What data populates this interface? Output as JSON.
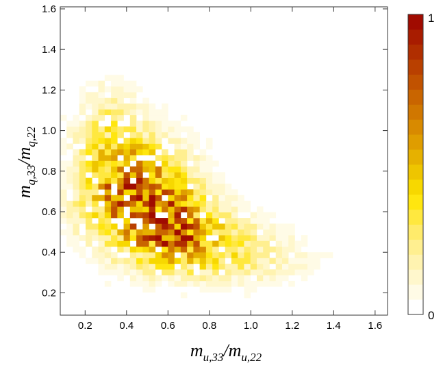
{
  "chart_data": {
    "type": "heatmap",
    "title": "",
    "xlabel": {
      "m": "m",
      "num_sub": "u,33",
      "slash": "/",
      "den_sub": "u,22"
    },
    "ylabel": {
      "m": "m",
      "num_sub": "q,33",
      "slash": "/",
      "den_sub": "q,22"
    },
    "xlim": [
      0.08,
      1.66
    ],
    "ylim": [
      0.09,
      1.61
    ],
    "x_ticks": [
      "0.2",
      "0.4",
      "0.6",
      "0.8",
      "1.0",
      "1.2",
      "1.4",
      "1.6"
    ],
    "y_ticks": [
      "0.2",
      "0.4",
      "0.6",
      "0.8",
      "1.0",
      "1.2",
      "1.4",
      "1.6"
    ],
    "bin_width_x": 0.0306,
    "bin_width_y": 0.0282,
    "colorbar": {
      "min_label": "0",
      "max_label": "1",
      "levels": 20
    },
    "colormap": [
      "#ffffff",
      "#fffbe6",
      "#fff7cc",
      "#fff3b0",
      "#ffef90",
      "#ffeb6b",
      "#ffe83f",
      "#ffe60f",
      "#f7d800",
      "#eec500",
      "#e6b100",
      "#df9d00",
      "#d88a00",
      "#d07700",
      "#c96500",
      "#c15200",
      "#b94000",
      "#b02e00",
      "#a81c00",
      "#a00b00"
    ],
    "blobs": [
      {
        "x": 0.44,
        "y": 0.7,
        "sx": 0.17,
        "sy": 0.17,
        "w": 0.75
      },
      {
        "x": 0.62,
        "y": 0.52,
        "sx": 0.16,
        "sy": 0.12,
        "w": 0.55
      },
      {
        "x": 0.82,
        "y": 0.42,
        "sx": 0.2,
        "sy": 0.1,
        "w": 0.3
      },
      {
        "x": 1.1,
        "y": 0.35,
        "sx": 0.18,
        "sy": 0.08,
        "w": 0.08
      },
      {
        "x": 0.32,
        "y": 1.0,
        "sx": 0.1,
        "sy": 0.15,
        "w": 0.22
      }
    ],
    "hot_cells": [
      {
        "x": 0.535,
        "y": 0.57,
        "v": 1.0
      },
      {
        "x": 0.685,
        "y": 0.42,
        "v": 0.72
      },
      {
        "x": 0.375,
        "y": 0.73,
        "v": 0.62
      },
      {
        "x": 0.375,
        "y": 0.62,
        "v": 0.55
      },
      {
        "x": 0.745,
        "y": 0.4,
        "v": 0.5
      },
      {
        "x": 0.715,
        "y": 0.44,
        "v": 0.5
      },
      {
        "x": 0.445,
        "y": 0.79,
        "v": 0.48
      },
      {
        "x": 0.475,
        "y": 0.62,
        "v": 0.45
      },
      {
        "x": 0.595,
        "y": 0.48,
        "v": 0.45
      },
      {
        "x": 0.655,
        "y": 0.52,
        "v": 0.42
      },
      {
        "x": 0.415,
        "y": 0.56,
        "v": 0.42
      },
      {
        "x": 0.325,
        "y": 0.78,
        "v": 0.4
      },
      {
        "x": 0.505,
        "y": 0.62,
        "v": 0.4
      },
      {
        "x": 0.805,
        "y": 0.38,
        "v": 0.38
      },
      {
        "x": 0.565,
        "y": 0.6,
        "v": 0.38
      },
      {
        "x": 0.265,
        "y": 0.74,
        "v": 0.33
      }
    ]
  }
}
